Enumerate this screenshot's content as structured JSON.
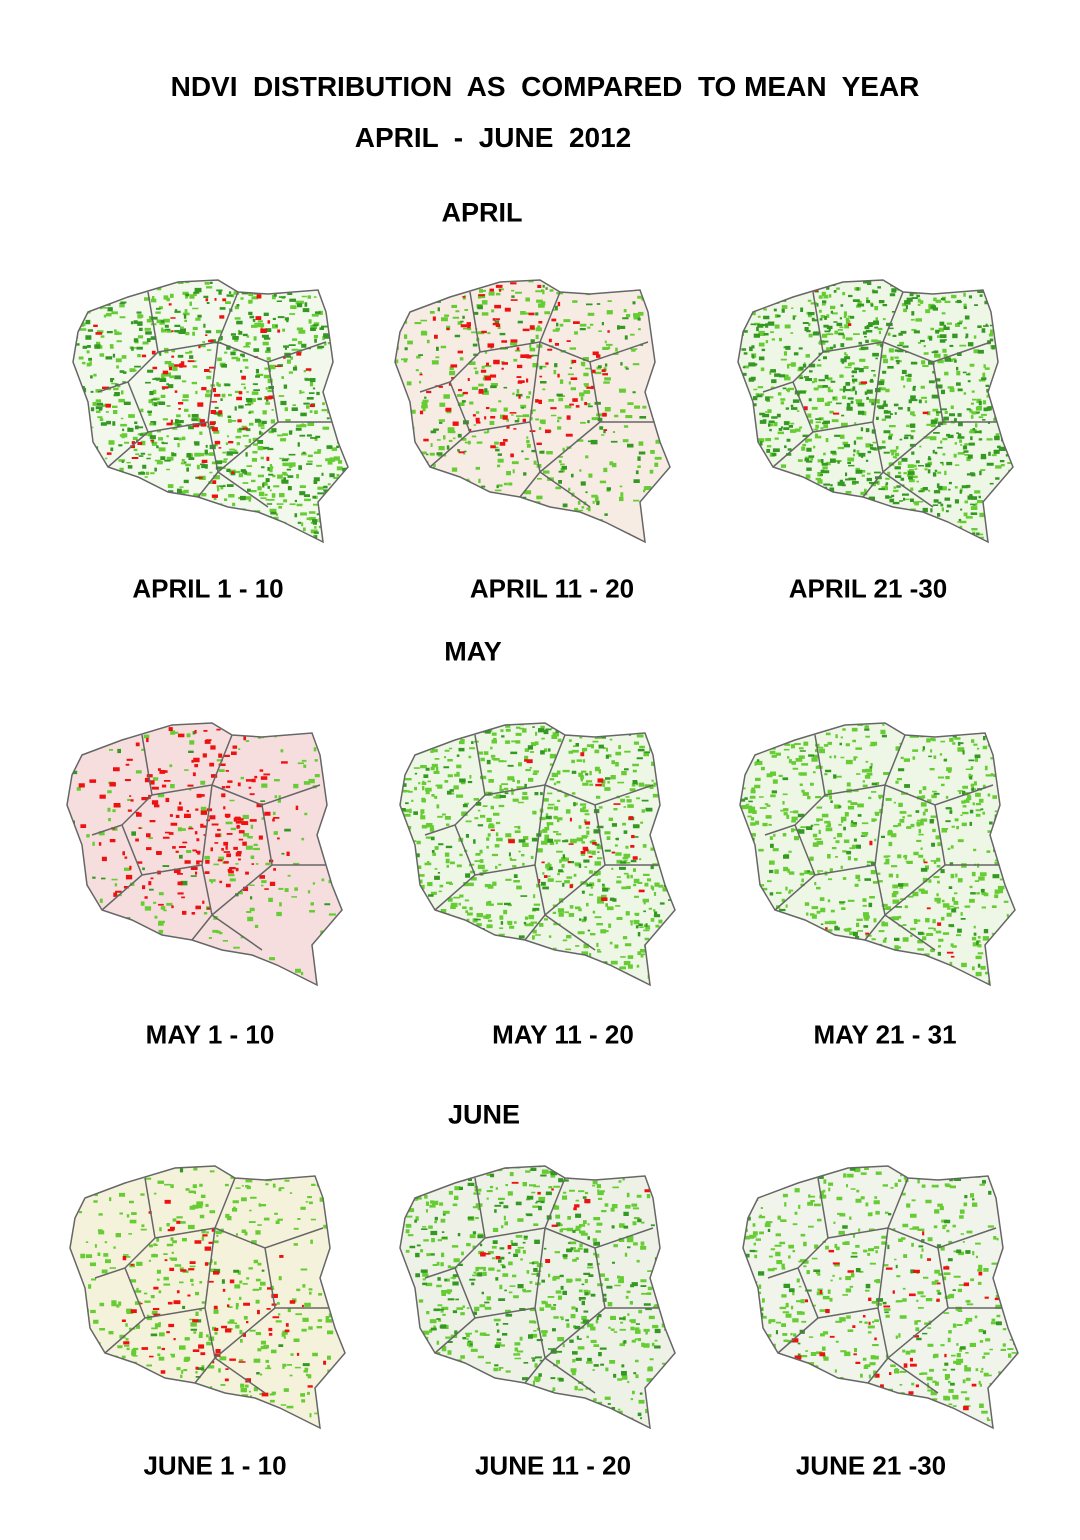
{
  "title": "NDVI  DISTRIBUTION  AS  COMPARED  TO MEAN  YEAR",
  "subtitle": "APRIL  -  JUNE  2012",
  "sections": [
    {
      "heading": "APRIL",
      "maps": [
        {
          "label": "APRIL 1 - 10"
        },
        {
          "label": "APRIL 11 - 20"
        },
        {
          "label": "APRIL 21 -30"
        }
      ]
    },
    {
      "heading": "MAY",
      "maps": [
        {
          "label": "MAY 1 - 10"
        },
        {
          "label": "MAY 11 - 20"
        },
        {
          "label": "MAY 21 - 31"
        }
      ]
    },
    {
      "heading": "JUNE",
      "maps": [
        {
          "label": "JUNE 1 - 10"
        },
        {
          "label": "JUNE 11 - 20"
        },
        {
          "label": "JUNE 21 -30"
        }
      ]
    }
  ]
}
